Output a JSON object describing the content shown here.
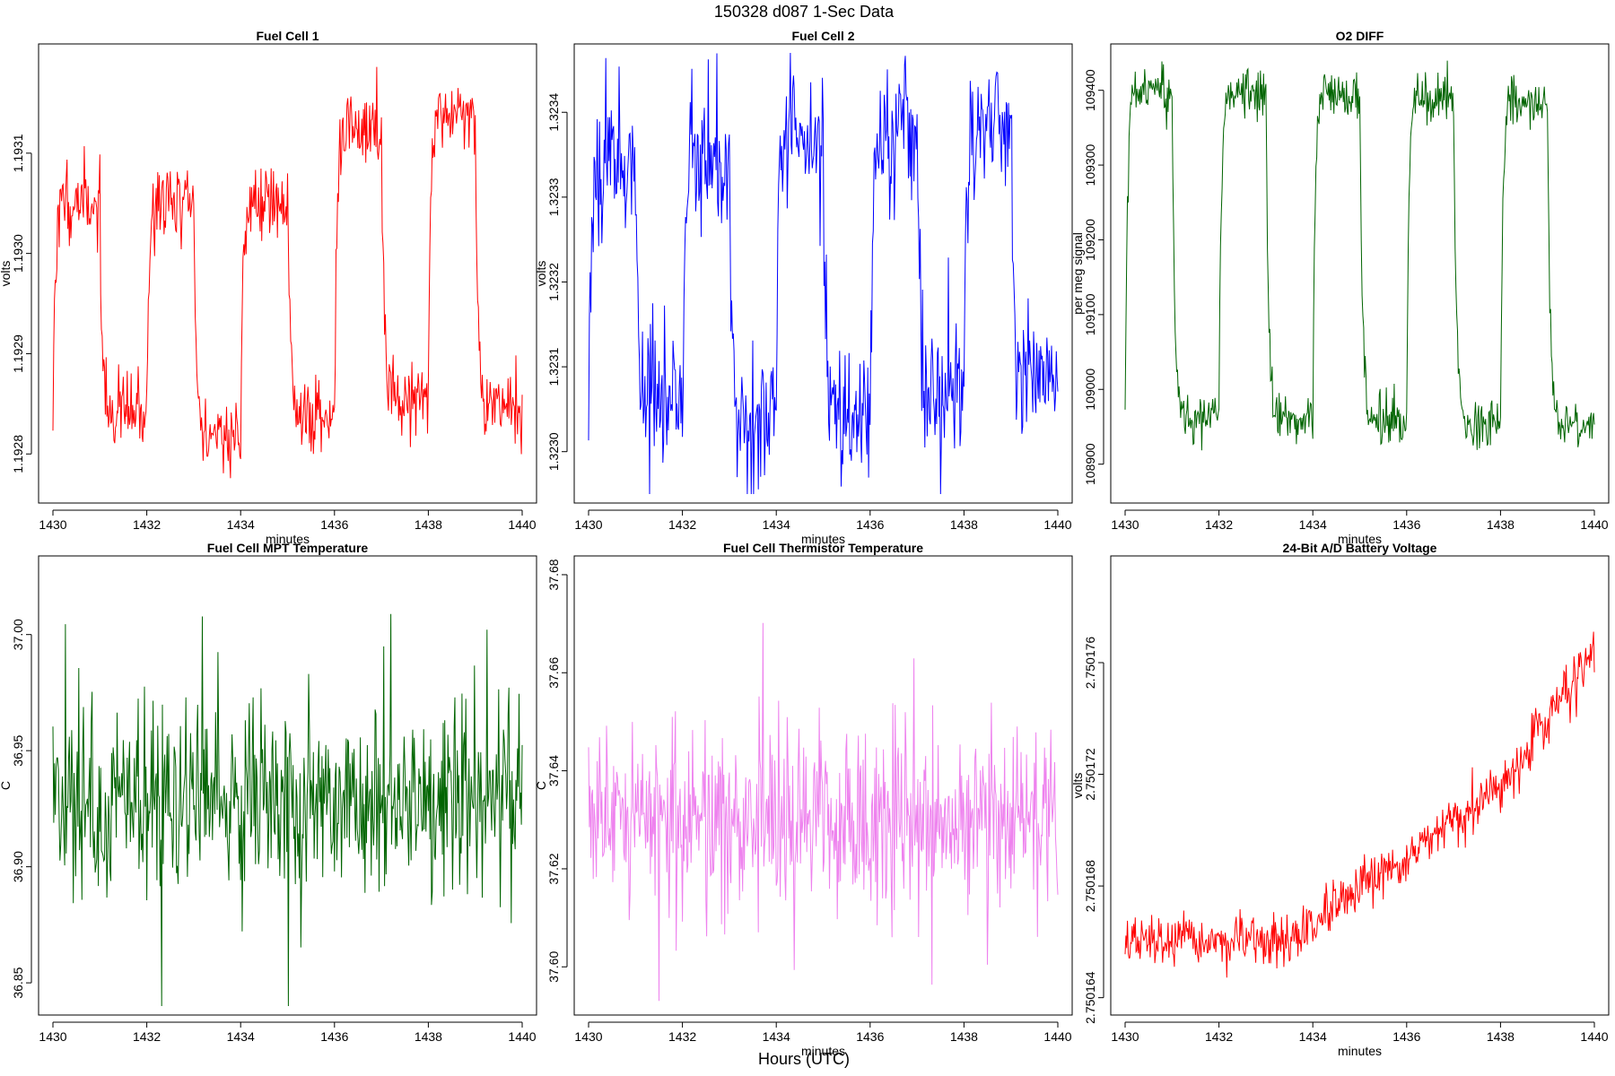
{
  "figure": {
    "title": "150328   d087   1-Sec Data",
    "xlabel_outer": "Hours (UTC)"
  },
  "chart_data": [
    {
      "type": "line",
      "title": "Fuel Cell 1",
      "xlabel": "minutes",
      "ylabel": "volts",
      "color": "#ff0000",
      "xlim": [
        1430,
        1440
      ],
      "ylim": [
        1.19276,
        1.1932
      ],
      "xticks": [
        1430,
        1432,
        1434,
        1436,
        1438,
        1440
      ],
      "yticks": [
        1.1928,
        1.1929,
        1.193,
        1.1931
      ],
      "ytick_labels": [
        "1.1928",
        "1.1929",
        "1.1930",
        "1.1931"
      ],
      "n_points": 601,
      "pattern": "square",
      "levels": [
        [
          1.19305,
          1.19284
        ],
        [
          1.19305,
          1.19282
        ],
        [
          1.19305,
          1.19284
        ],
        [
          1.19312,
          1.19286
        ],
        [
          1.19314,
          1.19285
        ]
      ],
      "noise": 2.2e-05,
      "seed": 11
    },
    {
      "type": "line",
      "title": "Fuel Cell 2",
      "xlabel": "minutes",
      "ylabel": "volts",
      "color": "#0000ff",
      "xlim": [
        1430,
        1440
      ],
      "ylim": [
        1.32295,
        1.32347
      ],
      "xticks": [
        1430,
        1432,
        1434,
        1436,
        1438,
        1440
      ],
      "yticks": [
        1.323,
        1.3231,
        1.3232,
        1.3233,
        1.3234
      ],
      "ytick_labels": [
        "1.3230",
        "1.3231",
        "1.3232",
        "1.3233",
        "1.3234"
      ],
      "n_points": 601,
      "pattern": "square",
      "levels": [
        [
          1.32335,
          1.32306
        ],
        [
          1.32335,
          1.32304
        ],
        [
          1.32336,
          1.32305
        ],
        [
          1.32338,
          1.32307
        ],
        [
          1.32339,
          1.32308
        ]
      ],
      "noise": 4.5e-05,
      "seed": 23
    },
    {
      "type": "line",
      "title": "O2 DIFF",
      "xlabel": "minutes",
      "ylabel": "per meg signal",
      "color": "#006400",
      "xlim": [
        1430,
        1440
      ],
      "ylim": [
        108860,
        109450
      ],
      "xticks": [
        1430,
        1432,
        1434,
        1436,
        1438,
        1440
      ],
      "yticks": [
        108900,
        109000,
        109100,
        109200,
        109300,
        109400
      ],
      "ytick_labels": [
        "108900",
        "109000",
        "109100",
        "109200",
        "109300",
        "109400"
      ],
      "n_points": 601,
      "pattern": "square",
      "levels": [
        [
          109395,
          108965
        ],
        [
          109395,
          108960
        ],
        [
          109395,
          108960
        ],
        [
          109390,
          108955
        ],
        [
          109385,
          108955
        ]
      ],
      "noise": 18,
      "seed": 37
    },
    {
      "type": "line",
      "title": "Fuel Cell MPT Temperature",
      "xlabel": "",
      "ylabel": "C",
      "color": "#006400",
      "xlim": [
        1430,
        1440
      ],
      "ylim": [
        36.84,
        37.03
      ],
      "xticks": [
        1430,
        1432,
        1434,
        1436,
        1438,
        1440
      ],
      "yticks": [
        36.85,
        36.9,
        36.95,
        37.0
      ],
      "ytick_labels": [
        "36.85",
        "36.90",
        "36.95",
        "37.00"
      ],
      "n_points": 601,
      "pattern": "noise",
      "base": 36.928,
      "noise": 0.026,
      "seed": 41
    },
    {
      "type": "line",
      "title": "Fuel Cell Thermistor Temperature",
      "xlabel": "minutes",
      "ylabel": "C",
      "color": "#ee82ee",
      "xlim": [
        1430,
        1440
      ],
      "ylim": [
        37.592,
        37.682
      ],
      "xticks": [
        1430,
        1432,
        1434,
        1436,
        1438,
        1440
      ],
      "yticks": [
        37.6,
        37.62,
        37.64,
        37.66,
        37.68
      ],
      "ytick_labels": [
        "37.60",
        "37.62",
        "37.64",
        "37.66",
        "37.68"
      ],
      "n_points": 601,
      "pattern": "noise",
      "base": 37.631,
      "noise": 0.013,
      "seed": 53
    },
    {
      "type": "line",
      "title": "24-Bit A/D Battery Voltage",
      "xlabel": "minutes",
      "ylabel": "volts",
      "color": "#ff0000",
      "xlim": [
        1430,
        1440
      ],
      "ylim": [
        2.7501637,
        2.7501795
      ],
      "xticks": [
        1430,
        1432,
        1434,
        1436,
        1438,
        1440
      ],
      "yticks": [
        2.750164,
        2.750168,
        2.750172,
        2.750176
      ],
      "ytick_labels": [
        "2.750164",
        "2.750168",
        "2.750172",
        "2.750176"
      ],
      "n_points": 601,
      "pattern": "trend",
      "trend": [
        [
          1430,
          2.750166
        ],
        [
          1433.5,
          2.750166
        ],
        [
          1436,
          2.750169
        ],
        [
          1438,
          2.7501715
        ],
        [
          1440,
          2.7501765
        ]
      ],
      "noise": 5.5e-07,
      "seed": 67
    }
  ]
}
